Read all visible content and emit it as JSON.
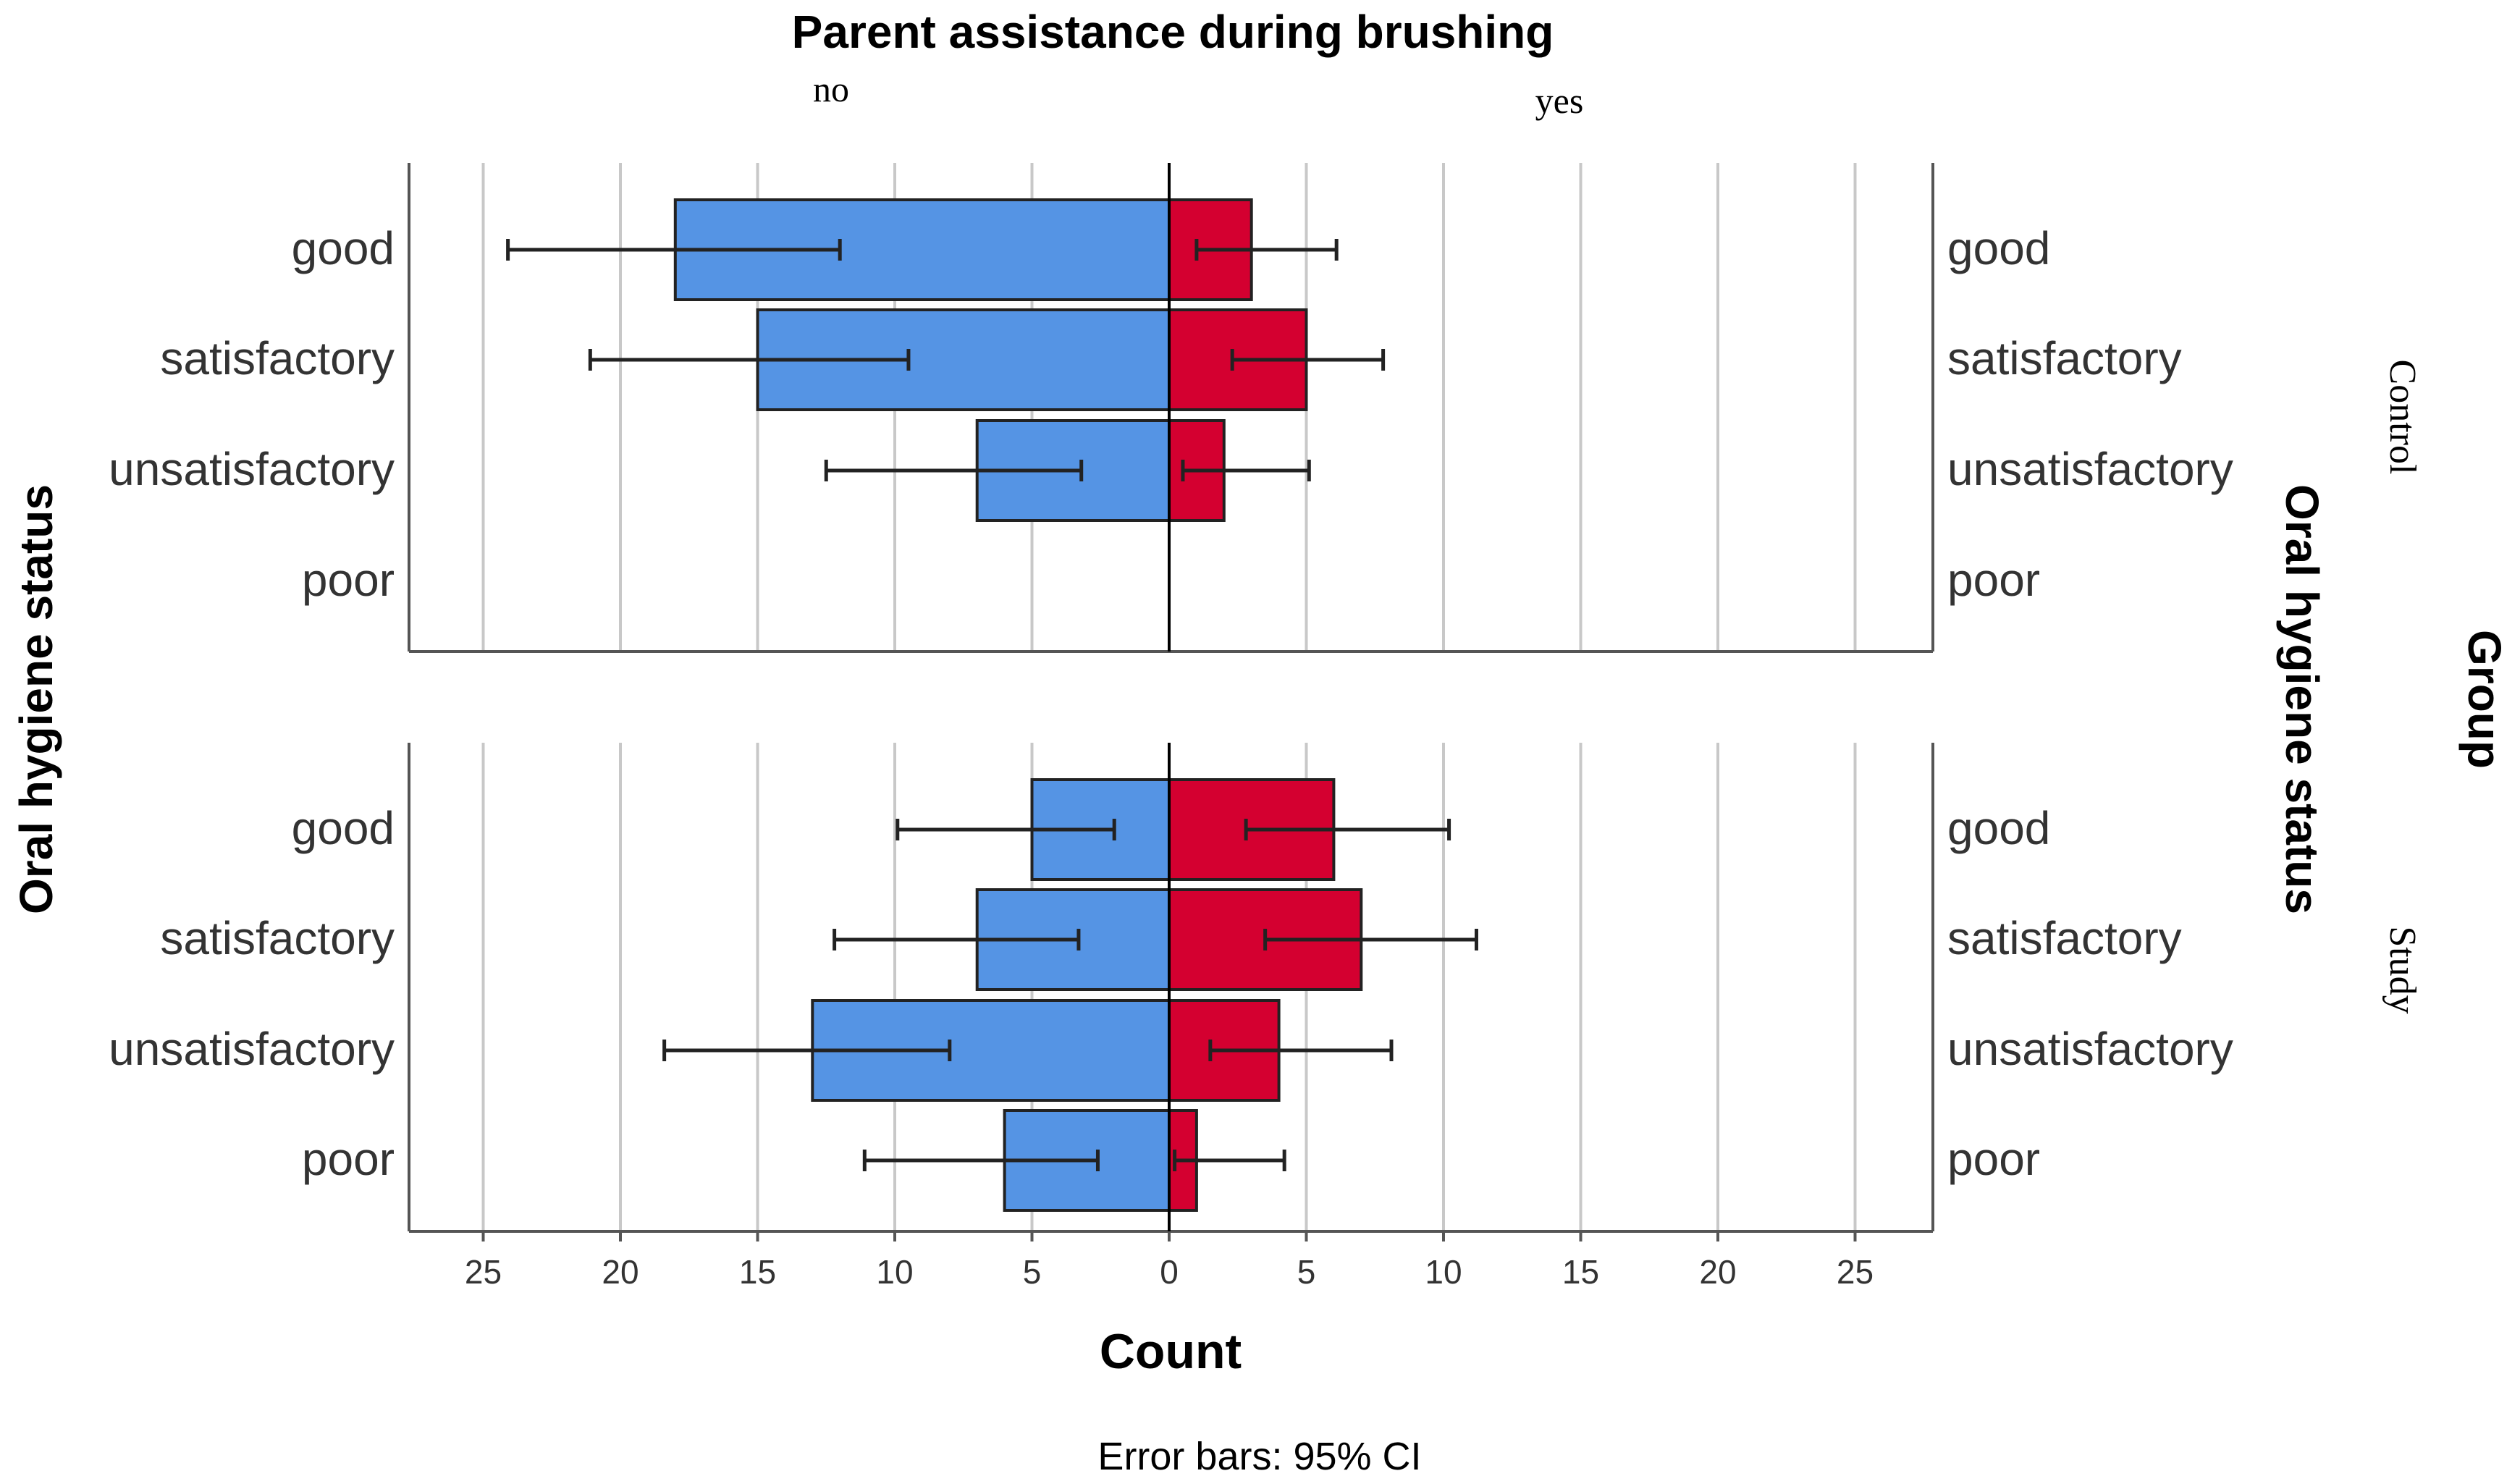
{
  "chart_data": {
    "type": "bar",
    "subtype": "population-pyramid-with-error-bars",
    "title": "Parent assistance during brushing",
    "xlabel": "Count",
    "ylabel_left": "Oral hygiene status",
    "ylabel_right": "Oral hygiene status",
    "panel_label": "Group",
    "footnote": "Error bars: 95% CI",
    "categories": [
      "good",
      "satisfactory",
      "unsatisfactory",
      "poor"
    ],
    "xlim": [
      -28,
      28
    ],
    "xticks": [
      -25,
      -20,
      -15,
      -10,
      -5,
      0,
      5,
      10,
      15,
      20,
      25
    ],
    "xtick_labels": [
      "25",
      "20",
      "15",
      "10",
      "5",
      "0",
      "5",
      "10",
      "15",
      "20",
      "25"
    ],
    "sides": [
      {
        "name": "no",
        "direction": "left",
        "color": "#5594e4"
      },
      {
        "name": "yes",
        "direction": "right",
        "color": "#d40030"
      }
    ],
    "panels": [
      {
        "group": "Control",
        "series": [
          {
            "name": "no",
            "values": [
              18,
              15,
              7,
              0
            ],
            "ci_low": [
              12,
              9.5,
              3.2,
              null
            ],
            "ci_high": [
              24.1,
              21.1,
              12.5,
              null
            ]
          },
          {
            "name": "yes",
            "values": [
              3,
              5,
              2,
              0
            ],
            "ci_low": [
              1,
              2.3,
              0.5,
              null
            ],
            "ci_high": [
              6.1,
              7.8,
              5.1,
              null
            ]
          }
        ]
      },
      {
        "group": "Study",
        "series": [
          {
            "name": "no",
            "values": [
              5,
              7,
              13,
              6
            ],
            "ci_low": [
              2,
              3.3,
              8,
              2.6
            ],
            "ci_high": [
              9.9,
              12.2,
              18.4,
              11.1
            ]
          },
          {
            "name": "yes",
            "values": [
              6,
              7,
              4,
              1
            ],
            "ci_low": [
              2.8,
              3.5,
              1.5,
              0.2
            ],
            "ci_high": [
              10.2,
              11.2,
              8.1,
              4.2
            ]
          }
        ]
      }
    ]
  }
}
